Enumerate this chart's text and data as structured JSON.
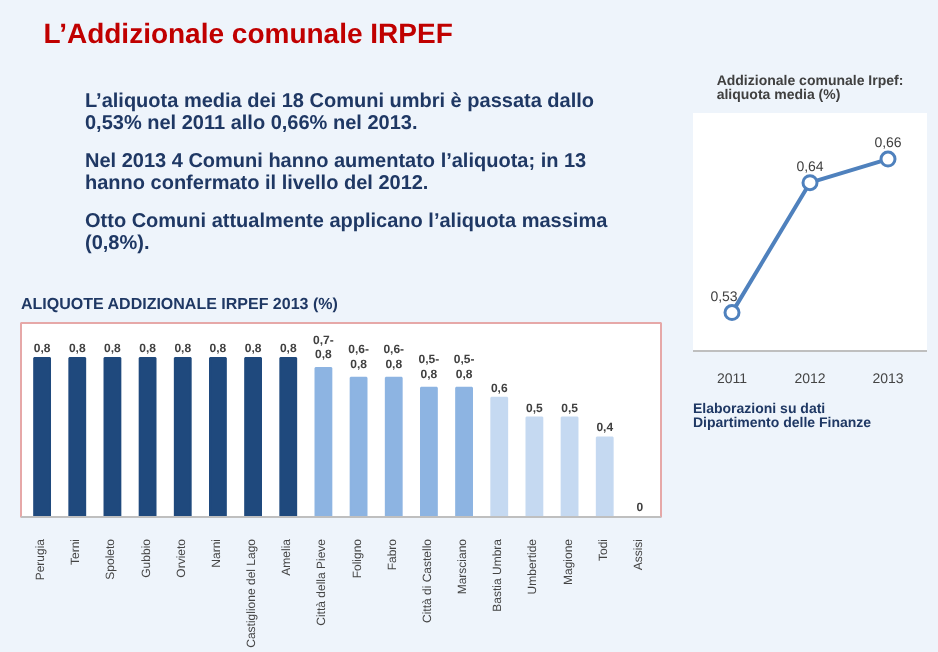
{
  "chart_data": [
    {
      "type": "other",
      "title": "L’Addizionale comunale IRPEF",
      "annotations": [
        "L’aliquota media dei 18 Comuni umbri è passata dallo 0,53% nel 2011 allo 0,66% nel 2013.",
        "Nel 2013 4 Comuni hanno aumentato l’aliquota; in 13 hanno confermato il livello del 2012.",
        "Otto Comuni attualmente applicano l’aliquota massima (0,8%)."
      ]
    },
    {
      "type": "line",
      "title": "Addizionale comunale Irpef: aliquota media (%)",
      "categories": [
        "2011",
        "2012",
        "2013"
      ],
      "marker": "circle",
      "data_labels": true,
      "series": [
        {
          "color": "#4f81bd",
          "values": [
            0.53,
            0.64,
            0.66
          ],
          "value_labels": [
            "0,53",
            "0,64",
            "0,66"
          ]
        }
      ],
      "annotations": [
        "Elaborazioni su dati Dipartimento delle Finanze"
      ]
    },
    {
      "type": "bar",
      "title": "ALIQUOTE ADDIZIONALE IRPEF 2013 (%)",
      "categories": [
        "Perugia",
        "Terni",
        "Spoleto",
        "Gubbio",
        "Orvieto",
        "Narni",
        "Castiglione del Lago",
        "Amelia",
        "Città della Pieve",
        "Foligno",
        "Fabro",
        "Città di Castello",
        "Marsciano",
        "Bastia Umbra",
        "Umbertide",
        "Magione",
        "Todi",
        "Assisi"
      ],
      "values": [
        0.8,
        0.8,
        0.8,
        0.8,
        0.8,
        0.8,
        0.8,
        0.8,
        0.75,
        0.7,
        0.7,
        0.65,
        0.65,
        0.6,
        0.5,
        0.5,
        0.4,
        0
      ],
      "colors": [
        "#1f497d",
        "#1f497d",
        "#1f497d",
        "#1f497d",
        "#1f497d",
        "#1f497d",
        "#1f497d",
        "#1f497d",
        "#8db4e2",
        "#8db4e2",
        "#8db4e2",
        "#8db4e2",
        "#8db4e2",
        "#c5d9f1",
        "#c5d9f1",
        "#c5d9f1",
        "#c5d9f1",
        "#c5d9f1"
      ],
      "value_labels": [
        "0,8",
        "0,8",
        "0,8",
        "0,8",
        "0,8",
        "0,8",
        "0,8",
        "0,8",
        "0,7-0,8",
        "0,6-0,8",
        "0,6-0,8",
        "0,5-0,8",
        "0,5-0,8",
        "0,6",
        "0,5",
        "0,5",
        "0,4",
        "0"
      ]
    }
  ]
}
